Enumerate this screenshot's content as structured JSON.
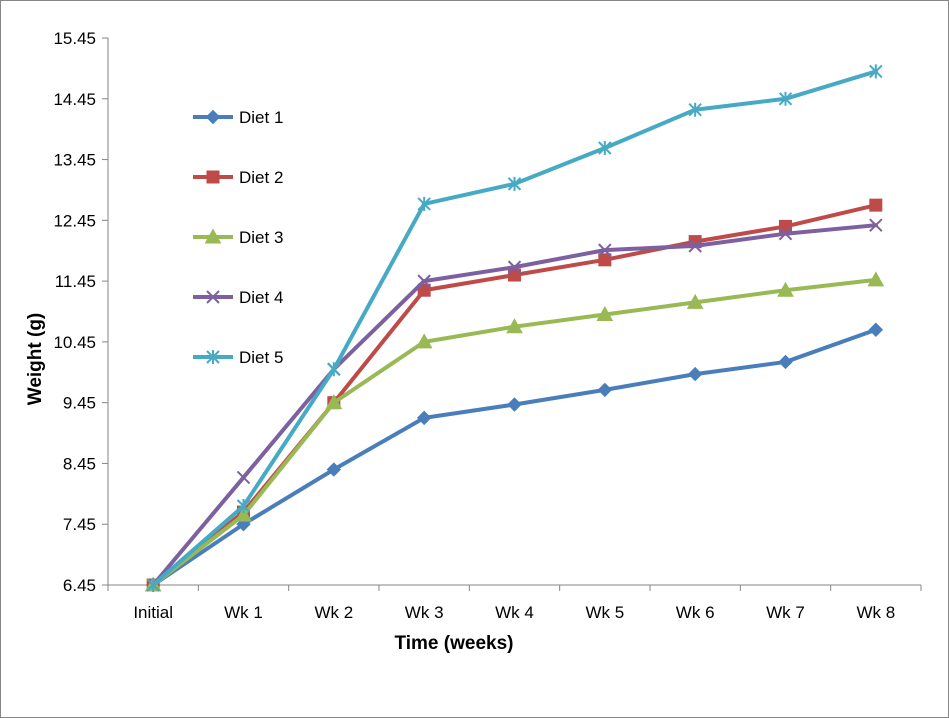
{
  "chart_data": {
    "type": "line",
    "title": "",
    "xlabel": "Time (weeks)",
    "ylabel": "Weight (g)",
    "categories": [
      "Initial",
      "Wk 1",
      "Wk 2",
      "Wk 3",
      "Wk 4",
      "Wk 5",
      "Wk 6",
      "Wk 7",
      "Wk 8"
    ],
    "ylim": [
      6.45,
      15.45
    ],
    "yticks": [
      "6.45",
      "7.45",
      "8.45",
      "9.45",
      "10.45",
      "11.45",
      "12.45",
      "13.45",
      "14.45",
      "15.45"
    ],
    "grid": false,
    "legend": "left, inside plot",
    "series": [
      {
        "name": "Diet 1",
        "color": "#4A7EBB",
        "marker": "diamond",
        "values": [
          6.45,
          7.45,
          8.35,
          9.2,
          9.42,
          9.66,
          9.92,
          10.12,
          10.65
        ]
      },
      {
        "name": "Diet 2",
        "color": "#BE4B48",
        "marker": "square",
        "values": [
          6.45,
          7.65,
          9.45,
          11.3,
          11.55,
          11.8,
          12.1,
          12.35,
          12.7
        ]
      },
      {
        "name": "Diet 3",
        "color": "#98B954",
        "marker": "triangle",
        "values": [
          6.45,
          7.6,
          9.45,
          10.45,
          10.7,
          10.9,
          11.1,
          11.3,
          11.47
        ]
      },
      {
        "name": "Diet 4",
        "color": "#7D60A0",
        "marker": "x",
        "values": [
          6.45,
          8.22,
          10.0,
          11.45,
          11.68,
          11.96,
          12.03,
          12.23,
          12.37
        ]
      },
      {
        "name": "Diet 5",
        "color": "#46AAC5",
        "marker": "asterisk",
        "values": [
          6.45,
          7.75,
          10.0,
          12.72,
          13.05,
          13.64,
          14.27,
          14.45,
          14.9
        ]
      }
    ]
  }
}
